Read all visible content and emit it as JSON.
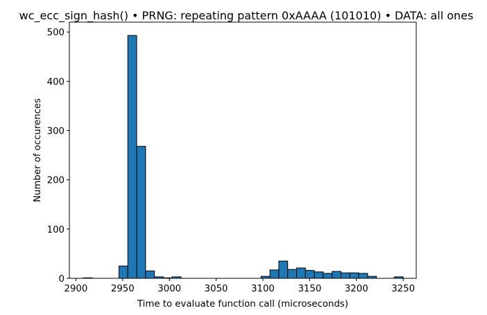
{
  "chart_data": {
    "type": "bar",
    "subtype": "histogram",
    "title": "wc_ecc_sign_hash() • PRNG: repeating pattern 0xAAAA (101010) • DATA: all ones",
    "xlabel": "Time to evaluate function call (microseconds)",
    "ylabel": "Number of occurences",
    "xlim": [
      2893,
      3264
    ],
    "ylim": [
      0,
      520
    ],
    "xticks": [
      2900,
      2950,
      3000,
      3050,
      3100,
      3150,
      3200,
      3250
    ],
    "yticks": [
      0,
      100,
      200,
      300,
      400,
      500
    ],
    "bar_color": "#1f77b4",
    "edge_color": "#000000",
    "grid": false,
    "bins": [
      {
        "x0": 2908.0,
        "x1": 2917.5,
        "value": 1
      },
      {
        "x0": 2917.5,
        "x1": 2927.0,
        "value": 0
      },
      {
        "x0": 2927.0,
        "x1": 2936.5,
        "value": 0
      },
      {
        "x0": 2936.5,
        "x1": 2946.0,
        "value": 0
      },
      {
        "x0": 2946.0,
        "x1": 2955.5,
        "value": 25
      },
      {
        "x0": 2955.5,
        "x1": 2965.0,
        "value": 493
      },
      {
        "x0": 2965.0,
        "x1": 2974.5,
        "value": 268
      },
      {
        "x0": 2974.5,
        "x1": 2984.0,
        "value": 15
      },
      {
        "x0": 2984.0,
        "x1": 2993.5,
        "value": 3
      },
      {
        "x0": 2993.5,
        "x1": 3003.0,
        "value": 1
      },
      {
        "x0": 3003.0,
        "x1": 3012.5,
        "value": 3
      },
      {
        "x0": 3012.5,
        "x1": 3022.0,
        "value": 0
      },
      {
        "x0": 3022.0,
        "x1": 3031.5,
        "value": 0
      },
      {
        "x0": 3031.5,
        "x1": 3041.0,
        "value": 0
      },
      {
        "x0": 3041.0,
        "x1": 3050.5,
        "value": 0
      },
      {
        "x0": 3050.5,
        "x1": 3060.0,
        "value": 0
      },
      {
        "x0": 3060.0,
        "x1": 3069.5,
        "value": 0
      },
      {
        "x0": 3069.5,
        "x1": 3079.0,
        "value": 0
      },
      {
        "x0": 3079.0,
        "x1": 3088.5,
        "value": 0
      },
      {
        "x0": 3088.5,
        "x1": 3098.0,
        "value": 0
      },
      {
        "x0": 3098.0,
        "x1": 3107.5,
        "value": 4
      },
      {
        "x0": 3107.5,
        "x1": 3117.0,
        "value": 17
      },
      {
        "x0": 3117.0,
        "x1": 3126.5,
        "value": 35
      },
      {
        "x0": 3126.5,
        "x1": 3136.0,
        "value": 18
      },
      {
        "x0": 3136.0,
        "x1": 3145.5,
        "value": 21
      },
      {
        "x0": 3145.5,
        "x1": 3155.0,
        "value": 16
      },
      {
        "x0": 3155.0,
        "x1": 3164.5,
        "value": 13
      },
      {
        "x0": 3164.5,
        "x1": 3174.0,
        "value": 10
      },
      {
        "x0": 3174.0,
        "x1": 3183.5,
        "value": 14
      },
      {
        "x0": 3183.5,
        "x1": 3193.0,
        "value": 11
      },
      {
        "x0": 3193.0,
        "x1": 3202.5,
        "value": 11
      },
      {
        "x0": 3202.5,
        "x1": 3212.0,
        "value": 10
      },
      {
        "x0": 3212.0,
        "x1": 3221.5,
        "value": 4
      },
      {
        "x0": 3221.5,
        "x1": 3231.0,
        "value": 0
      },
      {
        "x0": 3231.0,
        "x1": 3240.5,
        "value": 0
      },
      {
        "x0": 3240.5,
        "x1": 3250.0,
        "value": 3
      }
    ]
  }
}
